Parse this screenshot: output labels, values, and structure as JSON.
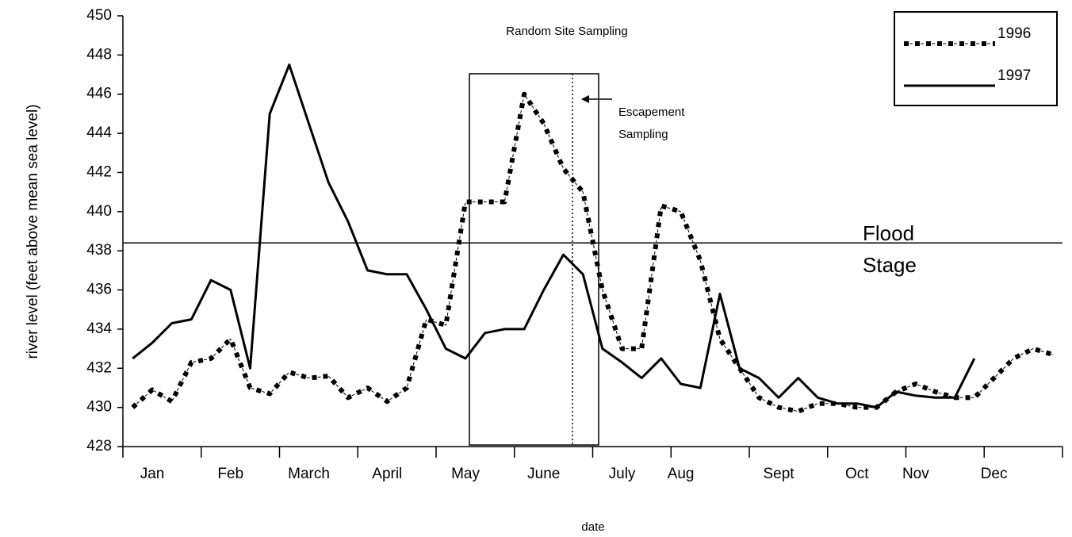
{
  "chart_data": {
    "type": "line",
    "title": "Random Site Sampling",
    "x_label": "date",
    "y_label": "river level (feet above mean sea level)",
    "categories": [
      null,
      "Jan",
      null,
      null,
      null,
      "Feb",
      null,
      null,
      null,
      "March",
      null,
      null,
      null,
      "April",
      null,
      null,
      null,
      "May",
      null,
      null,
      null,
      "June",
      null,
      null,
      null,
      "July",
      null,
      null,
      "Aug",
      null,
      null,
      null,
      null,
      "Sept",
      null,
      null,
      null,
      "Oct",
      null,
      null,
      "Nov",
      null,
      null,
      null,
      "Dec",
      null,
      null,
      null
    ],
    "series": [
      {
        "name": "1996",
        "color": "#000000",
        "style": "dotted",
        "values": [
          430,
          430.9,
          430.3,
          432.3,
          432.5,
          433.5,
          431,
          430.7,
          431.8,
          431.5,
          431.6,
          430.5,
          431,
          430.3,
          431,
          434.5,
          434.2,
          440.5,
          440.5,
          440.5,
          446,
          444.5,
          442.2,
          441,
          436,
          433,
          433,
          440.3,
          440,
          437.5,
          433.5,
          432,
          430.5,
          430,
          429.8,
          430.2,
          430.2,
          430,
          430,
          430.8,
          431.2,
          430.8,
          430.5,
          430.5,
          431.5,
          432.5,
          433,
          432.7
        ]
      },
      {
        "name": "1997",
        "color": "#000000",
        "style": "solid",
        "values": [
          432.5,
          433.3,
          434.3,
          434.5,
          436.5,
          436,
          432,
          445,
          447.5,
          444.5,
          441.5,
          439.5,
          437,
          436.8,
          436.8,
          435,
          433,
          432.5,
          433.8,
          434,
          434,
          436,
          437.8,
          436.8,
          433,
          432.3,
          431.5,
          432.5,
          431.2,
          431,
          435.8,
          432,
          431.5,
          430.5,
          431.5,
          430.5,
          430.2,
          430.2,
          430,
          430.8,
          430.6,
          430.5,
          430.5,
          432.5,
          null,
          null,
          null,
          null
        ]
      }
    ],
    "ylim": [
      428,
      450
    ],
    "yticks": [
      428,
      430,
      432,
      434,
      436,
      438,
      440,
      442,
      444,
      446,
      448,
      450
    ],
    "grid": false,
    "legend": "top-right",
    "reference_line": {
      "value": 438.4,
      "label": [
        "Flood",
        "Stage"
      ]
    },
    "annotations": [
      "Escapement",
      "Sampling"
    ]
  }
}
